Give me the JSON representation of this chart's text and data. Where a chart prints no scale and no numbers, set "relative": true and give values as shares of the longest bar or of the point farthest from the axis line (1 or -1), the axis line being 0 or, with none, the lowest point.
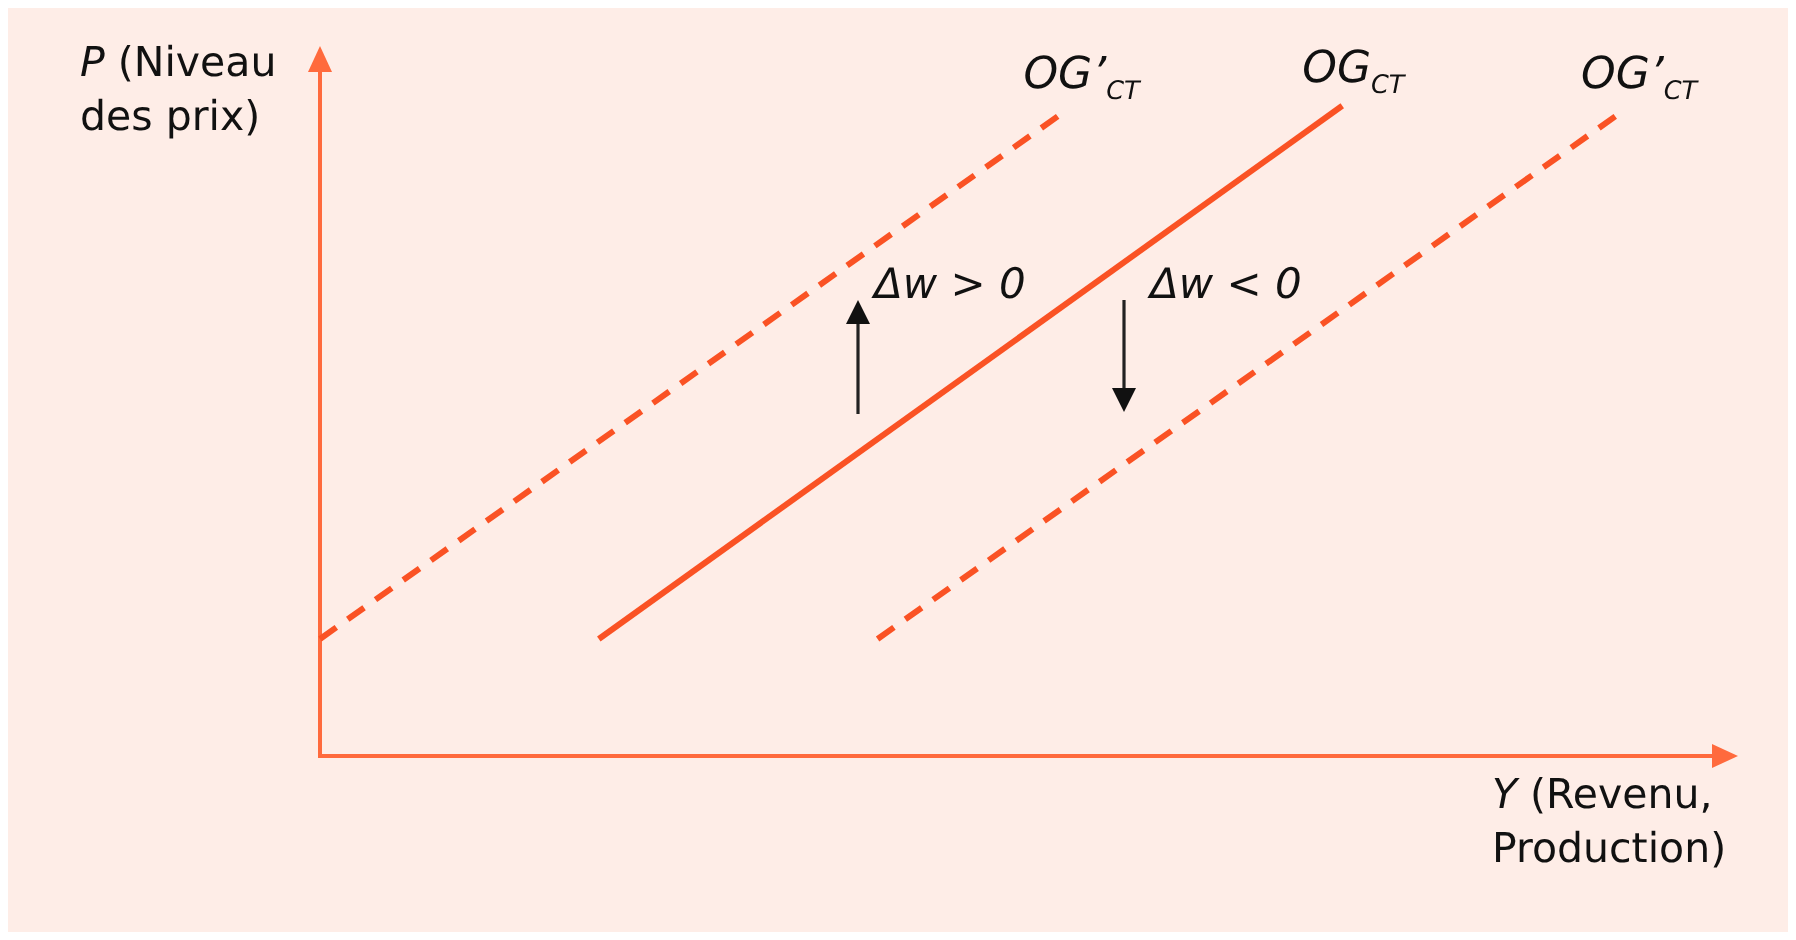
{
  "chart_data": {
    "type": "line",
    "relative": true,
    "xlabel": "Y (Revenu, Production)",
    "ylabel": "P (Niveau des prix)",
    "categories": [
      null,
      null,
      null,
      null,
      null,
      null,
      null,
      null,
      null,
      null,
      null,
      null,
      null,
      null,
      null,
      null
    ],
    "series": [
      {
        "name": "OG’$_{CT}$",
        "color": "#fa5224",
        "line_style": "dashed",
        "values": [
          0.18,
          null,
          null,
          null,
          null,
          null,
          null,
          null,
          0.99,
          null,
          null,
          null,
          null,
          null,
          null,
          null
        ]
      },
      {
        "name": "OG$_{CT}$",
        "color": "#fa5224",
        "line_style": "solid",
        "values": [
          null,
          null,
          null,
          0.18,
          null,
          null,
          null,
          null,
          null,
          null,
          null,
          1,
          null,
          null,
          null,
          null
        ]
      },
      {
        "name": "OG’$_{CT}$",
        "color": "#fa5224",
        "line_style": "dashed",
        "values": [
          null,
          null,
          null,
          null,
          null,
          null,
          0.18,
          null,
          null,
          null,
          null,
          null,
          null,
          null,
          0.99,
          null
        ]
      }
    ],
    "annotations": [
      "Δw > 0",
      "Δw < 0"
    ],
    "marker": "none",
    "grid": false,
    "legend": false
  }
}
